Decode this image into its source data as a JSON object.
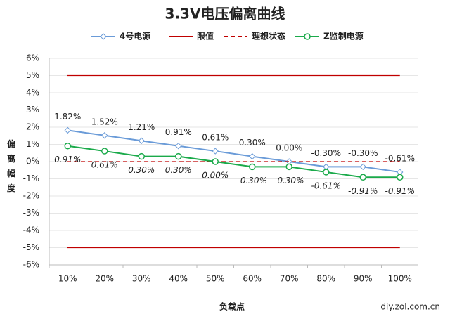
{
  "chart_data": {
    "type": "line",
    "title": "3.3V电压偏离曲线",
    "x_label": "负载点",
    "y_label": "偏离幅度",
    "source": "diy.zol.com.cn",
    "categories": [
      "10%",
      "20%",
      "30%",
      "40%",
      "50%",
      "60%",
      "70%",
      "80%",
      "90%",
      "100%"
    ],
    "ylim": [
      -6,
      6
    ],
    "yticks": [
      {
        "value": -6,
        "label": "-6%"
      },
      {
        "value": -5,
        "label": "-5%"
      },
      {
        "value": -4,
        "label": "-4%"
      },
      {
        "value": -3,
        "label": "-3%"
      },
      {
        "value": -2,
        "label": "-2%"
      },
      {
        "value": -1,
        "label": "-1%"
      },
      {
        "value": 0,
        "label": "0%"
      },
      {
        "value": 1,
        "label": "1%"
      },
      {
        "value": 2,
        "label": "2%"
      },
      {
        "value": 3,
        "label": "3%"
      },
      {
        "value": 4,
        "label": "4%"
      },
      {
        "value": 5,
        "label": "5%"
      },
      {
        "value": 6,
        "label": "6%"
      }
    ],
    "grid": true,
    "legend": "top",
    "series": [
      {
        "name": "4号电源",
        "color": "#6a9bd8",
        "marker": "diamond",
        "values": [
          1.82,
          1.52,
          1.21,
          0.91,
          0.61,
          0.3,
          0.0,
          -0.3,
          -0.3,
          -0.61
        ],
        "value_labels": [
          "1.82%",
          "1.52%",
          "1.21%",
          "0.91%",
          "0.61%",
          "0.30%",
          "0.00%",
          "-0.30%",
          "-0.30%",
          "-0.61%"
        ]
      },
      {
        "name": "限值",
        "color": "#c00000",
        "style": "solid",
        "levels": [
          5,
          -5
        ]
      },
      {
        "name": "理想状态",
        "color": "#c00000",
        "style": "dashed",
        "levels": [
          0
        ]
      },
      {
        "name": "Z监制电源",
        "color": "#1aaa4a",
        "marker": "circle",
        "values": [
          0.91,
          0.61,
          0.3,
          0.3,
          0.0,
          -0.3,
          -0.3,
          -0.61,
          -0.91,
          -0.91
        ],
        "value_labels": [
          "0.91%",
          "0.61%",
          "0.30%",
          "0.30%",
          "0.00%",
          "-0.30%",
          "-0.30%",
          "-0.61%",
          "-0.91%",
          "-0.91%"
        ]
      }
    ]
  }
}
